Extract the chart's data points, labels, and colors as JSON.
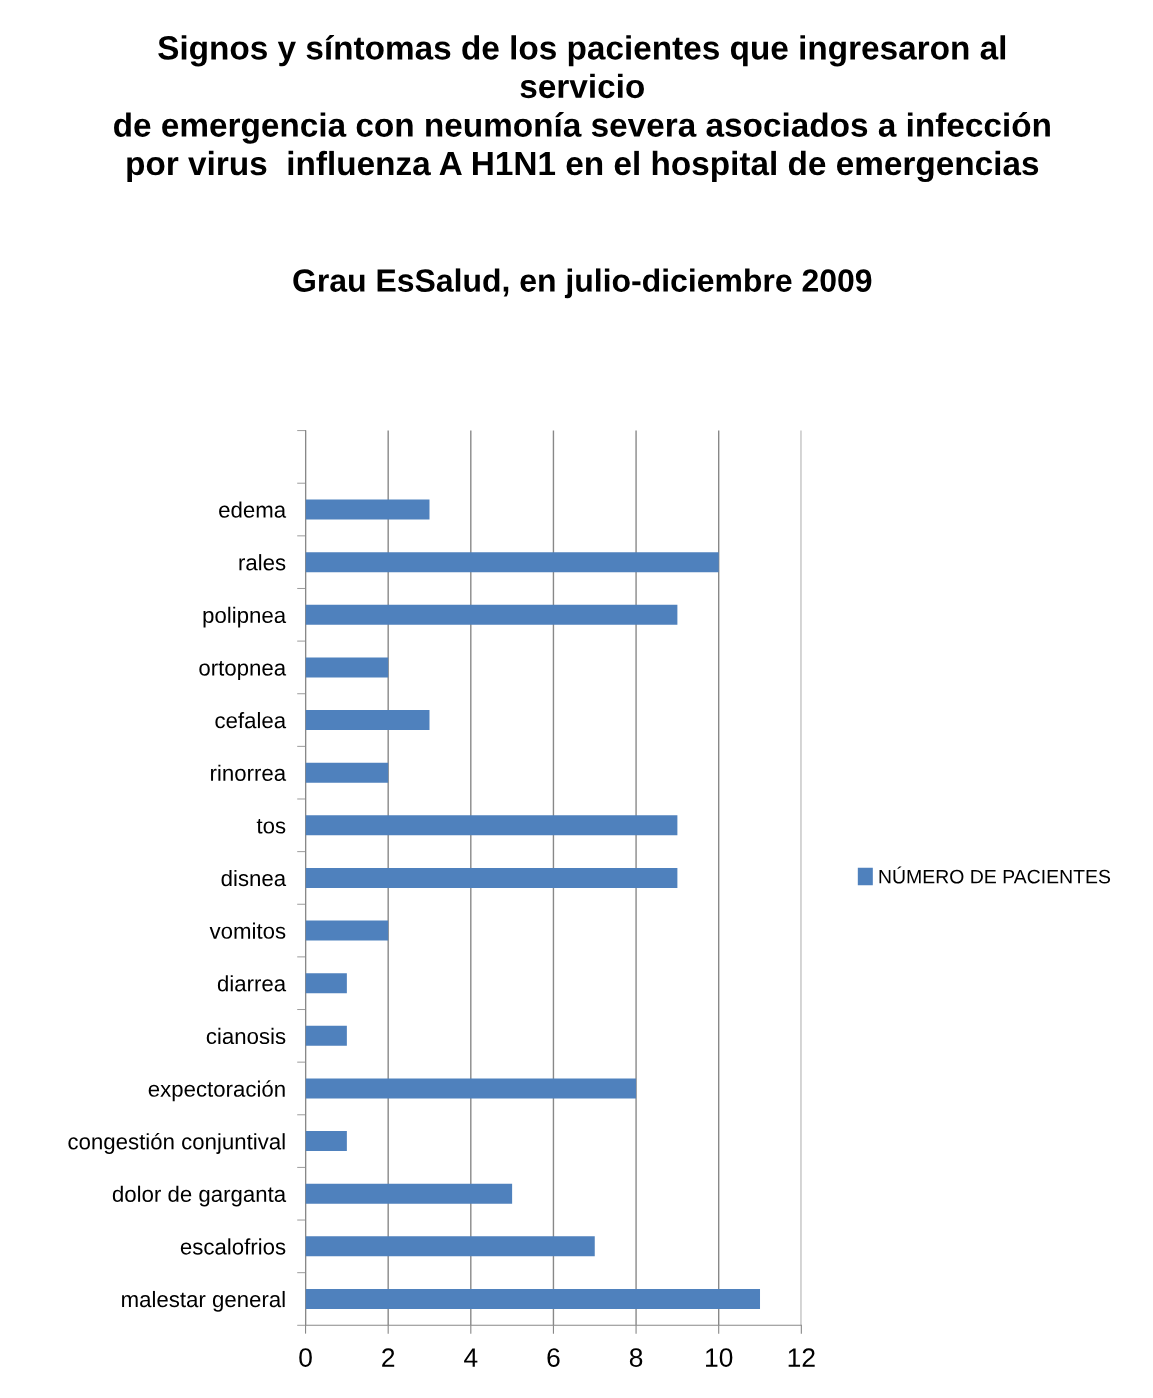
{
  "chart_data": {
    "type": "bar",
    "orientation": "horizontal",
    "title": "Signos y síntomas de los pacientes que ingresaron al\nservicio\nde emergencia con neumonía severa asociados a infección\npor virus  influenza A H1N1 en el hospital de emergencias",
    "subtitle": "Grau EsSalud, en julio-diciembre 2009",
    "categories": [
      null,
      "edema",
      "rales",
      "polipnea",
      "ortopnea",
      "cefalea",
      "rinorrea",
      "tos",
      "disnea",
      "vomitos",
      "diarrea",
      "cianosis",
      "expectoración",
      "congestión conjuntival",
      "dolor de garganta",
      "escalofrios",
      "malestar general"
    ],
    "series": [
      {
        "name": "NÚMERO DE PACIENTES",
        "color": "#4f81bd",
        "values": [
          null,
          3,
          10,
          9,
          2,
          3,
          2,
          9,
          9,
          2,
          1,
          1,
          8,
          1,
          5,
          7,
          11
        ]
      }
    ],
    "xlim": [
      0,
      12
    ],
    "xticks": [
      0,
      2,
      4,
      6,
      8,
      10,
      12
    ],
    "grid": "x",
    "legend": "right"
  }
}
